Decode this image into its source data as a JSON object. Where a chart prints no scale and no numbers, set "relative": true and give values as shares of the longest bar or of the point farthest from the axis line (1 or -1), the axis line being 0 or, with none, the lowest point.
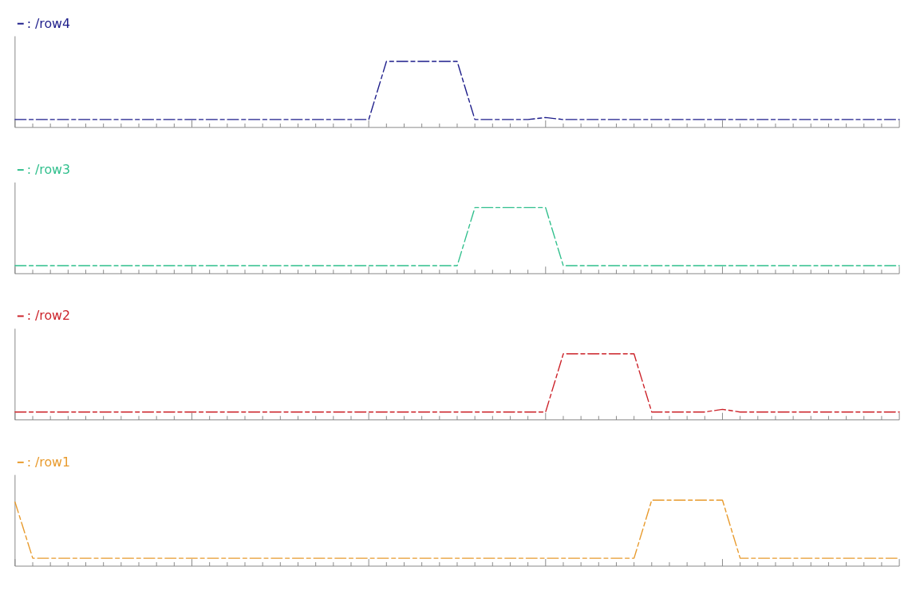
{
  "chart_data": [
    {
      "type": "line",
      "relative": true,
      "legend": "top left",
      "line_style": "dashed",
      "categories": [
        null,
        null,
        null,
        null,
        null,
        null,
        null,
        null,
        null,
        null,
        null,
        null,
        null,
        null,
        null,
        null,
        null,
        null,
        null,
        null,
        null,
        null,
        null,
        null,
        null,
        null,
        null,
        null,
        null,
        null,
        null,
        null,
        null,
        null,
        null,
        null,
        null,
        null,
        null,
        null,
        null,
        null,
        null,
        null,
        null,
        null,
        null,
        null,
        null,
        null,
        null
      ],
      "series": [
        {
          "name": ": /row4",
          "color": "#1c1c8a",
          "values": [
            0.12,
            0.12,
            0.12,
            0.12,
            0.12,
            0.12,
            0.12,
            0.12,
            0.12,
            0.12,
            0.12,
            0.12,
            0.12,
            0.12,
            0.12,
            0.12,
            0.12,
            0.12,
            0.12,
            0.12,
            0.12,
            1,
            1,
            1,
            1,
            1,
            0.12,
            0.12,
            0.12,
            0.12,
            0.15,
            0.12,
            0.12,
            0.12,
            0.12,
            0.12,
            0.12,
            0.12,
            0.12,
            0.12,
            0.12,
            0.12,
            0.12,
            0.12,
            0.12,
            0.12,
            0.12,
            0.12,
            0.12,
            0.12,
            0.12
          ]
        }
      ]
    },
    {
      "type": "line",
      "relative": true,
      "legend": "top left",
      "line_style": "dashed",
      "categories": [
        null,
        null,
        null,
        null,
        null,
        null,
        null,
        null,
        null,
        null,
        null,
        null,
        null,
        null,
        null,
        null,
        null,
        null,
        null,
        null,
        null,
        null,
        null,
        null,
        null,
        null,
        null,
        null,
        null,
        null,
        null,
        null,
        null,
        null,
        null,
        null,
        null,
        null,
        null,
        null,
        null,
        null,
        null,
        null,
        null,
        null,
        null,
        null,
        null,
        null,
        null
      ],
      "series": [
        {
          "name": ": /row3",
          "color": "#2fbf8c",
          "values": [
            0.12,
            0.12,
            0.12,
            0.12,
            0.12,
            0.12,
            0.12,
            0.12,
            0.12,
            0.12,
            0.12,
            0.12,
            0.12,
            0.12,
            0.12,
            0.12,
            0.12,
            0.12,
            0.12,
            0.12,
            0.12,
            0.12,
            0.12,
            0.12,
            0.12,
            0.12,
            1,
            1,
            1,
            1,
            1,
            0.12,
            0.12,
            0.12,
            0.12,
            0.12,
            0.12,
            0.12,
            0.12,
            0.12,
            0.12,
            0.12,
            0.12,
            0.12,
            0.12,
            0.12,
            0.12,
            0.12,
            0.12,
            0.12,
            0.12
          ]
        }
      ]
    },
    {
      "type": "line",
      "relative": true,
      "legend": "top left",
      "line_style": "dashed",
      "categories": [
        null,
        null,
        null,
        null,
        null,
        null,
        null,
        null,
        null,
        null,
        null,
        null,
        null,
        null,
        null,
        null,
        null,
        null,
        null,
        null,
        null,
        null,
        null,
        null,
        null,
        null,
        null,
        null,
        null,
        null,
        null,
        null,
        null,
        null,
        null,
        null,
        null,
        null,
        null,
        null,
        null,
        null,
        null,
        null,
        null,
        null,
        null,
        null,
        null,
        null,
        null
      ],
      "series": [
        {
          "name": ": /row2",
          "color": "#cc2229",
          "values": [
            0.12,
            0.12,
            0.12,
            0.12,
            0.12,
            0.12,
            0.12,
            0.12,
            0.12,
            0.12,
            0.12,
            0.12,
            0.12,
            0.12,
            0.12,
            0.12,
            0.12,
            0.12,
            0.12,
            0.12,
            0.12,
            0.12,
            0.12,
            0.12,
            0.12,
            0.12,
            0.12,
            0.12,
            0.12,
            0.12,
            0.12,
            1,
            1,
            1,
            1,
            1,
            0.12,
            0.12,
            0.12,
            0.12,
            0.16,
            0.12,
            0.12,
            0.12,
            0.12,
            0.12,
            0.12,
            0.12,
            0.12,
            0.12,
            0.12
          ]
        }
      ]
    },
    {
      "type": "line",
      "relative": true,
      "legend": "top left",
      "line_style": "dashed",
      "categories": [
        null,
        null,
        null,
        null,
        null,
        null,
        null,
        null,
        null,
        null,
        null,
        null,
        null,
        null,
        null,
        null,
        null,
        null,
        null,
        null,
        null,
        null,
        null,
        null,
        null,
        null,
        null,
        null,
        null,
        null,
        null,
        null,
        null,
        null,
        null,
        null,
        null,
        null,
        null,
        null,
        null,
        null,
        null,
        null,
        null,
        null,
        null,
        null,
        null,
        null,
        null
      ],
      "series": [
        {
          "name": ": /row1",
          "color": "#e89a2c",
          "values": [
            0.97,
            0.12,
            0.12,
            0.12,
            0.12,
            0.12,
            0.12,
            0.12,
            0.12,
            0.12,
            0.12,
            0.12,
            0.12,
            0.12,
            0.12,
            0.12,
            0.12,
            0.12,
            0.12,
            0.12,
            0.12,
            0.12,
            0.12,
            0.12,
            0.12,
            0.12,
            0.12,
            0.12,
            0.12,
            0.12,
            0.12,
            0.12,
            0.12,
            0.12,
            0.12,
            0.12,
            1,
            1,
            1,
            1,
            1,
            0.12,
            0.12,
            0.12,
            0.12,
            0.12,
            0.12,
            0.12,
            0.12,
            0.12,
            0.12
          ]
        }
      ]
    }
  ]
}
